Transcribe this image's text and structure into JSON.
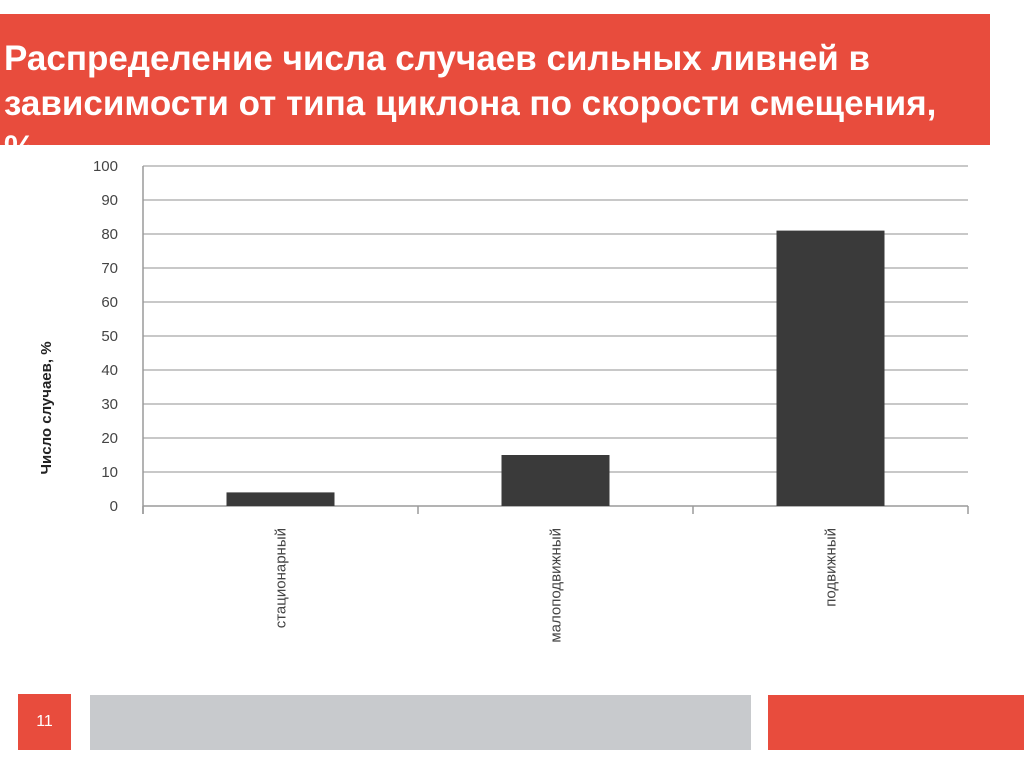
{
  "slide": {
    "title": "Распределение числа случаев сильных ливней в зависимости от типа циклона по скорости смещения, %",
    "page_number": "11"
  },
  "colors": {
    "accent": "#e84c3d",
    "bar": "#3a3a3a",
    "footer_gray": "#c8cacd"
  },
  "chart_data": {
    "type": "bar",
    "title": "",
    "xlabel": "",
    "ylabel": "Число случаев, %",
    "categories": [
      "стационарный",
      "малоподвижный",
      "подвижный"
    ],
    "values": [
      4,
      15,
      81
    ],
    "ylim": [
      0,
      100
    ],
    "yticks": [
      "0",
      "10",
      "20",
      "30",
      "40",
      "50",
      "60",
      "70",
      "80",
      "90",
      "100"
    ],
    "grid": true,
    "legend": "none"
  }
}
